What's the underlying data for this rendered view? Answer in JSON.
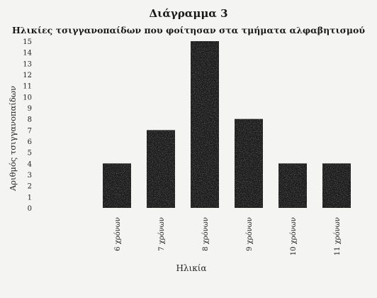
{
  "chart_data": {
    "type": "bar",
    "title": "Διάγραμμα 3",
    "subtitle": "Ηλικίες τσιγγανοπαίδων που φοίτησαν στα τμήματα αλφαβητισμού",
    "xlabel": "Ηλικία",
    "ylabel": "Αριθμός τσιγγανοπαίδων",
    "categories": [
      "6 χρόνων",
      "7 χρόνων",
      "8 χρόνων",
      "9 χρόνων",
      "10 χρόνων",
      "11 χρόνων"
    ],
    "values": [
      4,
      7,
      15,
      8,
      4,
      4
    ],
    "ylim": [
      0,
      15
    ],
    "yticks": [
      "0",
      "1",
      "2",
      "3",
      "4",
      "5",
      "6",
      "7",
      "8",
      "9",
      "10",
      "11",
      "12",
      "13",
      "14",
      "15"
    ],
    "grid": false,
    "bar_color": "#1b1b1b"
  }
}
